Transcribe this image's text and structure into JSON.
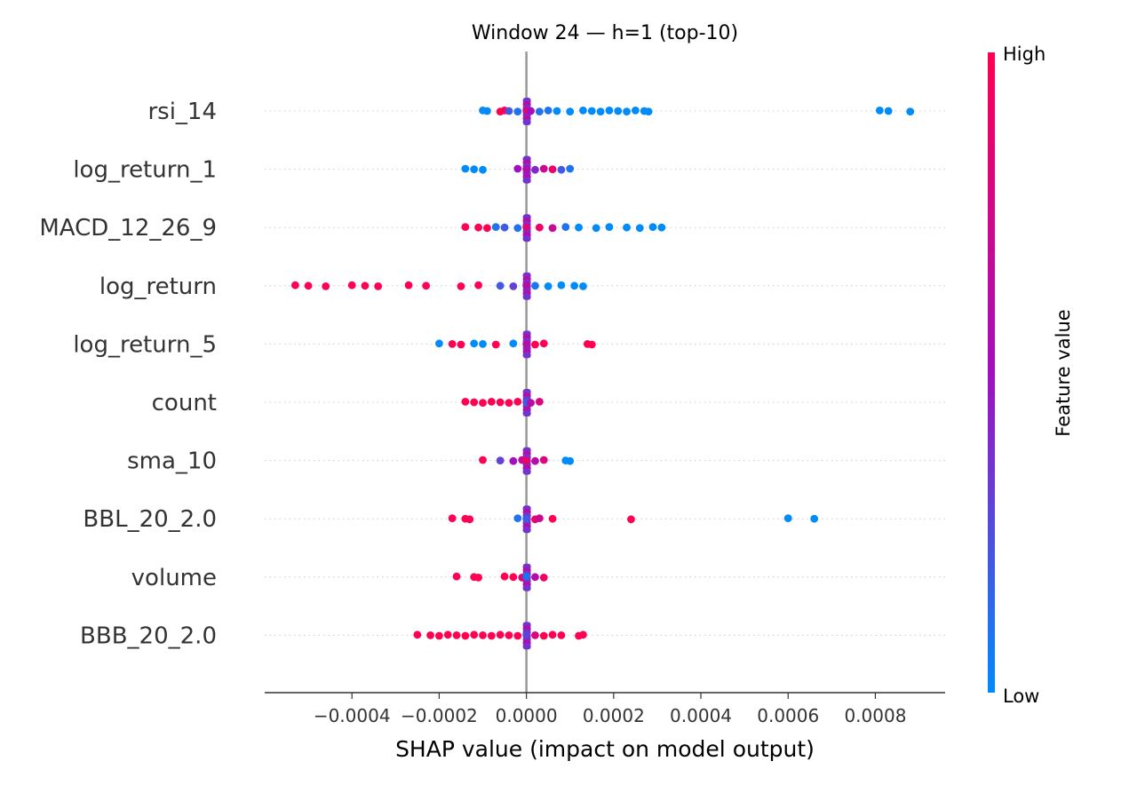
{
  "chart_data": {
    "type": "scatter",
    "title": "Window 24 — h=1 (top-10)",
    "xlabel": "SHAP value (impact on model output)",
    "ylabel": "",
    "xlim": [
      -0.0006,
      0.00096
    ],
    "x_ticks": [
      -0.0004,
      -0.0002,
      0.0,
      0.0002,
      0.0004,
      0.0006,
      0.0008
    ],
    "x_tick_labels": [
      "−0.0004",
      "−0.0002",
      "0.0000",
      "0.0002",
      "0.0004",
      "0.0006",
      "0.0008"
    ],
    "zero_line": 0.0,
    "grid": false,
    "colorbar": {
      "label": "Feature value",
      "high_label": "High",
      "low_label": "Low",
      "high_color": "#ff0052",
      "mid_color": "#a20fbe",
      "low_color": "#008bfb"
    },
    "features": [
      {
        "name": "rsi_14",
        "points": [
          {
            "x": -0.0001,
            "v": 0.0
          },
          {
            "x": -9e-05,
            "v": 0.0
          },
          {
            "x": -6e-05,
            "v": 1.0
          },
          {
            "x": -5e-05,
            "v": 1.0
          },
          {
            "x": -4e-05,
            "v": 0.2
          },
          {
            "x": -2e-05,
            "v": 0.1
          },
          {
            "x": 0.0,
            "v": 0.8
          },
          {
            "x": 1e-05,
            "v": 0.5
          },
          {
            "x": 3e-05,
            "v": 0.1
          },
          {
            "x": 5e-05,
            "v": 0.1
          },
          {
            "x": 7e-05,
            "v": 0.0
          },
          {
            "x": 0.0001,
            "v": 0.0
          },
          {
            "x": 0.00013,
            "v": 0.0
          },
          {
            "x": 0.00015,
            "v": 0.0
          },
          {
            "x": 0.00017,
            "v": 0.0
          },
          {
            "x": 0.00019,
            "v": 0.0
          },
          {
            "x": 0.00021,
            "v": 0.0
          },
          {
            "x": 0.00023,
            "v": 0.0
          },
          {
            "x": 0.00025,
            "v": 0.0
          },
          {
            "x": 0.00027,
            "v": 0.0
          },
          {
            "x": 0.00028,
            "v": 0.0
          },
          {
            "x": 0.00081,
            "v": 0.0
          },
          {
            "x": 0.00083,
            "v": 0.0
          },
          {
            "x": 0.00088,
            "v": 0.0
          }
        ]
      },
      {
        "name": "log_return_1",
        "points": [
          {
            "x": -0.00014,
            "v": 0.0
          },
          {
            "x": -0.00012,
            "v": 0.0
          },
          {
            "x": -0.0001,
            "v": 0.0
          },
          {
            "x": -2e-05,
            "v": 0.5
          },
          {
            "x": 0.0,
            "v": 0.6
          },
          {
            "x": 2e-05,
            "v": 0.4
          },
          {
            "x": 4e-05,
            "v": 0.7
          },
          {
            "x": 6e-05,
            "v": 0.9
          },
          {
            "x": 8e-05,
            "v": 0.2
          },
          {
            "x": 0.0001,
            "v": 0.1
          }
        ]
      },
      {
        "name": "MACD_12_26_9",
        "points": [
          {
            "x": -0.00014,
            "v": 1.0
          },
          {
            "x": -0.00011,
            "v": 1.0
          },
          {
            "x": -9e-05,
            "v": 1.0
          },
          {
            "x": -7e-05,
            "v": 0.1
          },
          {
            "x": -5e-05,
            "v": 0.2
          },
          {
            "x": -2e-05,
            "v": 0.1
          },
          {
            "x": 0.0,
            "v": 0.8
          },
          {
            "x": 3e-05,
            "v": 0.9
          },
          {
            "x": 6e-05,
            "v": 0.7
          },
          {
            "x": 9e-05,
            "v": 0.1
          },
          {
            "x": 0.00012,
            "v": 0.0
          },
          {
            "x": 0.00016,
            "v": 0.0
          },
          {
            "x": 0.00019,
            "v": 0.0
          },
          {
            "x": 0.00023,
            "v": 0.0
          },
          {
            "x": 0.00026,
            "v": 0.0
          },
          {
            "x": 0.00029,
            "v": 0.0
          },
          {
            "x": 0.00031,
            "v": 0.0
          }
        ]
      },
      {
        "name": "log_return",
        "points": [
          {
            "x": -0.00053,
            "v": 1.0
          },
          {
            "x": -0.0005,
            "v": 1.0
          },
          {
            "x": -0.00046,
            "v": 1.0
          },
          {
            "x": -0.0004,
            "v": 1.0
          },
          {
            "x": -0.00037,
            "v": 1.0
          },
          {
            "x": -0.00034,
            "v": 1.0
          },
          {
            "x": -0.00027,
            "v": 1.0
          },
          {
            "x": -0.00023,
            "v": 1.0
          },
          {
            "x": -0.00015,
            "v": 1.0
          },
          {
            "x": -0.00011,
            "v": 1.0
          },
          {
            "x": -6e-05,
            "v": 0.2
          },
          {
            "x": -3e-05,
            "v": 0.3
          },
          {
            "x": 0.0,
            "v": 0.6
          },
          {
            "x": 2e-05,
            "v": 0.1
          },
          {
            "x": 5e-05,
            "v": 0.0
          },
          {
            "x": 8e-05,
            "v": 0.0
          },
          {
            "x": 0.00011,
            "v": 0.0
          },
          {
            "x": 0.00013,
            "v": 0.0
          }
        ]
      },
      {
        "name": "log_return_5",
        "points": [
          {
            "x": -0.0002,
            "v": 0.0
          },
          {
            "x": -0.00017,
            "v": 1.0
          },
          {
            "x": -0.00015,
            "v": 1.0
          },
          {
            "x": -0.00012,
            "v": 0.0
          },
          {
            "x": -0.0001,
            "v": 0.0
          },
          {
            "x": -7e-05,
            "v": 1.0
          },
          {
            "x": -3e-05,
            "v": 0.0
          },
          {
            "x": 0.0,
            "v": 0.6
          },
          {
            "x": 2e-05,
            "v": 1.0
          },
          {
            "x": 4e-05,
            "v": 1.0
          },
          {
            "x": 0.00014,
            "v": 1.0
          },
          {
            "x": 0.00015,
            "v": 1.0
          }
        ]
      },
      {
        "name": "count",
        "points": [
          {
            "x": -0.00014,
            "v": 1.0
          },
          {
            "x": -0.00012,
            "v": 1.0
          },
          {
            "x": -0.0001,
            "v": 1.0
          },
          {
            "x": -8e-05,
            "v": 1.0
          },
          {
            "x": -6e-05,
            "v": 1.0
          },
          {
            "x": -4e-05,
            "v": 1.0
          },
          {
            "x": -2e-05,
            "v": 1.0
          },
          {
            "x": 0.0,
            "v": 0.2
          },
          {
            "x": 1e-05,
            "v": 0.6
          },
          {
            "x": 3e-05,
            "v": 0.8
          }
        ]
      },
      {
        "name": "sma_10",
        "points": [
          {
            "x": -0.0001,
            "v": 1.0
          },
          {
            "x": -6e-05,
            "v": 0.3
          },
          {
            "x": -3e-05,
            "v": 0.5
          },
          {
            "x": -1e-05,
            "v": 0.7
          },
          {
            "x": 0.0,
            "v": 0.9
          },
          {
            "x": 2e-05,
            "v": 0.6
          },
          {
            "x": 4e-05,
            "v": 0.8
          },
          {
            "x": 9e-05,
            "v": 0.0
          },
          {
            "x": 0.0001,
            "v": 0.0
          }
        ]
      },
      {
        "name": "BBL_20_2.0",
        "points": [
          {
            "x": -0.00017,
            "v": 1.0
          },
          {
            "x": -0.00014,
            "v": 1.0
          },
          {
            "x": -0.00013,
            "v": 1.0
          },
          {
            "x": -2e-05,
            "v": 0.1
          },
          {
            "x": 0.0,
            "v": 0.2
          },
          {
            "x": 2e-05,
            "v": 0.9
          },
          {
            "x": 3e-05,
            "v": 0.7
          },
          {
            "x": 6e-05,
            "v": 1.0
          },
          {
            "x": 0.00024,
            "v": 1.0
          },
          {
            "x": 0.0006,
            "v": 0.0
          },
          {
            "x": 0.00066,
            "v": 0.0
          }
        ]
      },
      {
        "name": "volume",
        "points": [
          {
            "x": -0.00016,
            "v": 1.0
          },
          {
            "x": -0.00012,
            "v": 1.0
          },
          {
            "x": -0.00011,
            "v": 1.0
          },
          {
            "x": -5e-05,
            "v": 1.0
          },
          {
            "x": -3e-05,
            "v": 1.0
          },
          {
            "x": -1e-05,
            "v": 0.8
          },
          {
            "x": 0.0,
            "v": 0.1
          },
          {
            "x": 2e-05,
            "v": 0.6
          },
          {
            "x": 4e-05,
            "v": 0.9
          }
        ]
      },
      {
        "name": "BBB_20_2.0",
        "points": [
          {
            "x": -0.00025,
            "v": 1.0
          },
          {
            "x": -0.00022,
            "v": 1.0
          },
          {
            "x": -0.0002,
            "v": 1.0
          },
          {
            "x": -0.00018,
            "v": 1.0
          },
          {
            "x": -0.00016,
            "v": 1.0
          },
          {
            "x": -0.00014,
            "v": 1.0
          },
          {
            "x": -0.00012,
            "v": 1.0
          },
          {
            "x": -0.0001,
            "v": 1.0
          },
          {
            "x": -8e-05,
            "v": 1.0
          },
          {
            "x": -6e-05,
            "v": 1.0
          },
          {
            "x": -4e-05,
            "v": 1.0
          },
          {
            "x": -2e-05,
            "v": 1.0
          },
          {
            "x": 0.0,
            "v": 0.3
          },
          {
            "x": 2e-05,
            "v": 0.8
          },
          {
            "x": 4e-05,
            "v": 1.0
          },
          {
            "x": 6e-05,
            "v": 1.0
          },
          {
            "x": 8e-05,
            "v": 1.0
          },
          {
            "x": 0.00012,
            "v": 1.0
          },
          {
            "x": 0.00013,
            "v": 1.0
          }
        ]
      }
    ]
  }
}
